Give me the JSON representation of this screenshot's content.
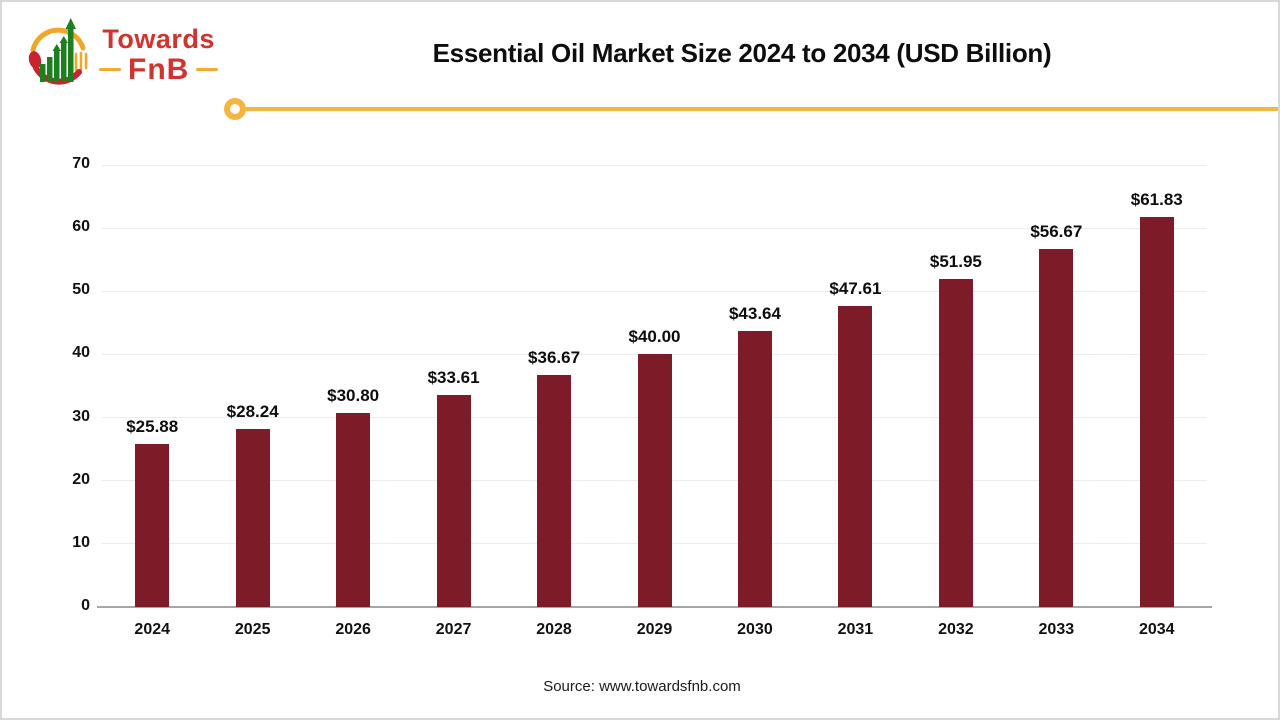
{
  "header": {
    "logo": {
      "line1": "Towards",
      "line2": "FnB"
    },
    "title": "Essential Oil Market Size 2024 to 2034 (USD Billion)"
  },
  "chart_data": {
    "type": "bar",
    "title": "Essential Oil Market Size 2024 to 2034 (USD Billion)",
    "categories": [
      "2024",
      "2025",
      "2026",
      "2027",
      "2028",
      "2029",
      "2030",
      "2031",
      "2032",
      "2033",
      "2034"
    ],
    "values": [
      25.88,
      28.24,
      30.8,
      33.61,
      36.67,
      40.0,
      43.64,
      47.61,
      51.95,
      56.67,
      61.83
    ],
    "labels": [
      "$25.88",
      "$28.24",
      "$30.80",
      "$33.61",
      "$36.67",
      "$40.00",
      "$43.64",
      "$47.61",
      "$51.95",
      "$56.67",
      "$61.83"
    ],
    "xlabel": "",
    "ylabel": "",
    "ylim": [
      0,
      70
    ],
    "ytick_step": 10,
    "grid": true,
    "legend": "none",
    "bar_color": "#7e1b28"
  },
  "footer": {
    "source": "Source: www.towardsfnb.com"
  },
  "colors": {
    "bar": "#7e1b28",
    "accent_yellow": "#f5b53e",
    "logo_red": "#d0342c",
    "logo_deep_red": "#c9242e",
    "logo_amber": "#f0a62b",
    "logo_green": "#1e7f1e",
    "gridline": "#ececec",
    "axis": "#a6a6a6"
  }
}
